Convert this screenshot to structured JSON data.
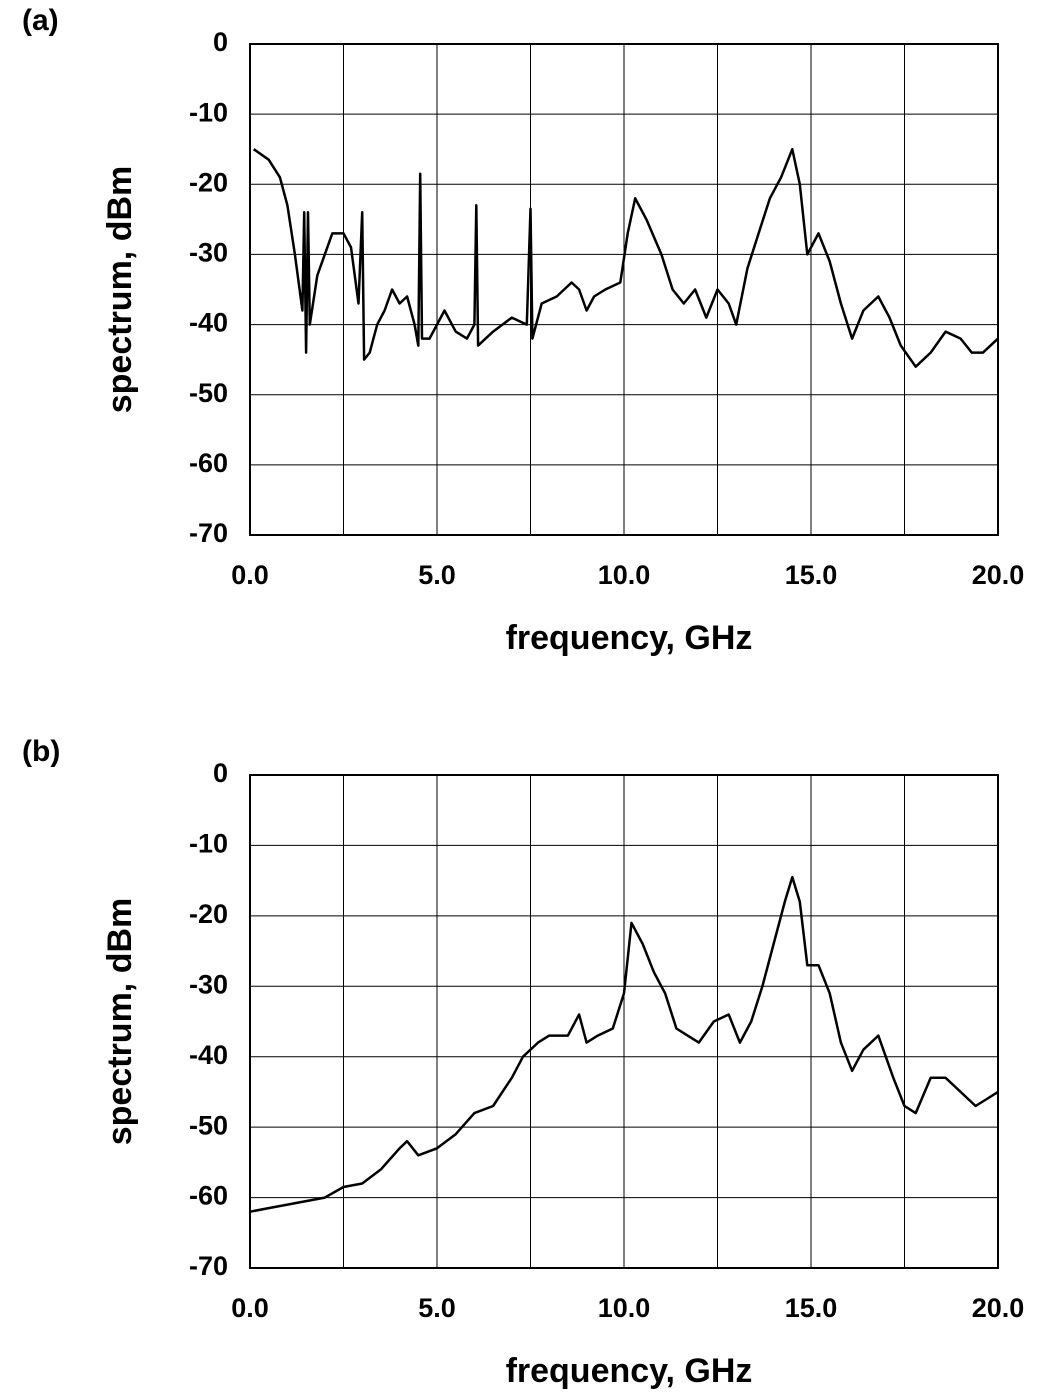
{
  "chart_data": [
    {
      "type": "line",
      "panel_label": "(a)",
      "x_label": "frequency, GHz",
      "y_label": "spectrum, dBm",
      "xlim": [
        0,
        20
      ],
      "ylim": [
        -70,
        0
      ],
      "xticks": [
        {
          "value": 0,
          "label": "0.0"
        },
        {
          "value": 5,
          "label": "5.0"
        },
        {
          "value": 10,
          "label": "10.0"
        },
        {
          "value": 15,
          "label": "15.0"
        },
        {
          "value": 20,
          "label": "20.0"
        }
      ],
      "xgrid": [
        2.5,
        7.5,
        12.5,
        17.5
      ],
      "yticks": [
        0,
        -10,
        -20,
        -30,
        -40,
        -50,
        -60,
        -70
      ],
      "grid": true,
      "color": "#000000",
      "x": [
        0.1,
        0.5,
        0.8,
        1.0,
        1.2,
        1.4,
        1.45,
        1.5,
        1.55,
        1.6,
        1.8,
        2.0,
        2.2,
        2.5,
        2.7,
        2.9,
        3.0,
        3.05,
        3.2,
        3.4,
        3.6,
        3.8,
        4.0,
        4.2,
        4.4,
        4.5,
        4.55,
        4.6,
        4.8,
        5.0,
        5.2,
        5.5,
        5.8,
        6.0,
        6.05,
        6.1,
        6.5,
        7.0,
        7.4,
        7.5,
        7.55,
        7.8,
        8.2,
        8.6,
        8.8,
        9.0,
        9.2,
        9.5,
        9.9,
        10.1,
        10.3,
        10.6,
        11.0,
        11.3,
        11.6,
        11.9,
        12.2,
        12.5,
        12.8,
        13.0,
        13.3,
        13.6,
        13.9,
        14.2,
        14.5,
        14.7,
        14.9,
        15.2,
        15.5,
        15.8,
        16.1,
        16.4,
        16.8,
        17.1,
        17.4,
        17.8,
        18.2,
        18.6,
        19.0,
        19.3,
        19.6,
        20.0
      ],
      "values": [
        -15,
        -16.5,
        -19,
        -23,
        -30,
        -38,
        -24,
        -44,
        -24,
        -40,
        -33,
        -30,
        -27,
        -27,
        -29,
        -37,
        -24,
        -45,
        -44,
        -40,
        -38,
        -35,
        -37,
        -36,
        -40,
        -43,
        -18.5,
        -42,
        -42,
        -40,
        -38,
        -41,
        -42,
        -40,
        -23,
        -43,
        -41,
        -39,
        -40,
        -23.5,
        -42,
        -37,
        -36,
        -34,
        -35,
        -38,
        -36,
        -35,
        -34,
        -27,
        -22,
        -25,
        -30,
        -35,
        -37,
        -35,
        -39,
        -35,
        -37,
        -40,
        -32,
        -27,
        -22,
        -19,
        -15,
        -20,
        -30,
        -27,
        -31,
        -37,
        -42,
        -38,
        -36,
        -39,
        -43,
        -46,
        -44,
        -41,
        -42,
        -44,
        -44,
        -42
      ]
    },
    {
      "type": "line",
      "panel_label": "(b)",
      "x_label": "frequency, GHz",
      "y_label": "spectrum, dBm",
      "xlim": [
        0,
        20
      ],
      "ylim": [
        -70,
        0
      ],
      "xticks": [
        {
          "value": 0,
          "label": "0.0"
        },
        {
          "value": 5,
          "label": "5.0"
        },
        {
          "value": 10,
          "label": "10.0"
        },
        {
          "value": 15,
          "label": "15.0"
        },
        {
          "value": 20,
          "label": "20.0"
        }
      ],
      "xgrid": [
        2.5,
        7.5,
        12.5,
        17.5
      ],
      "yticks": [
        0,
        -10,
        -20,
        -30,
        -40,
        -50,
        -60,
        -70
      ],
      "grid": true,
      "color": "#000000",
      "x": [
        0,
        0.5,
        1.0,
        1.5,
        2.0,
        2.5,
        3.0,
        3.5,
        4.0,
        4.2,
        4.5,
        5.0,
        5.5,
        6.0,
        6.5,
        7.0,
        7.3,
        7.7,
        8.0,
        8.5,
        8.8,
        9.0,
        9.3,
        9.7,
        10.0,
        10.2,
        10.5,
        10.8,
        11.1,
        11.4,
        11.7,
        12.0,
        12.4,
        12.8,
        13.1,
        13.4,
        13.7,
        14.0,
        14.3,
        14.5,
        14.7,
        14.9,
        15.2,
        15.5,
        15.8,
        16.1,
        16.4,
        16.8,
        17.2,
        17.5,
        17.8,
        18.2,
        18.6,
        19.0,
        19.4,
        19.7,
        20.0
      ],
      "values": [
        -62,
        -61.5,
        -61,
        -60.5,
        -60,
        -58.5,
        -58,
        -56,
        -53,
        -52,
        -54,
        -53,
        -51,
        -48,
        -47,
        -43,
        -40,
        -38,
        -37,
        -37,
        -34,
        -38,
        -37,
        -36,
        -31,
        -21,
        -24,
        -28,
        -31,
        -36,
        -37,
        -38,
        -35,
        -34,
        -38,
        -35,
        -30,
        -24,
        -18,
        -14.5,
        -18,
        -27,
        -27,
        -31,
        -38,
        -42,
        -39,
        -37,
        -43,
        -47,
        -48,
        -43,
        -43,
        -45,
        -47,
        -46,
        -45
      ]
    }
  ]
}
